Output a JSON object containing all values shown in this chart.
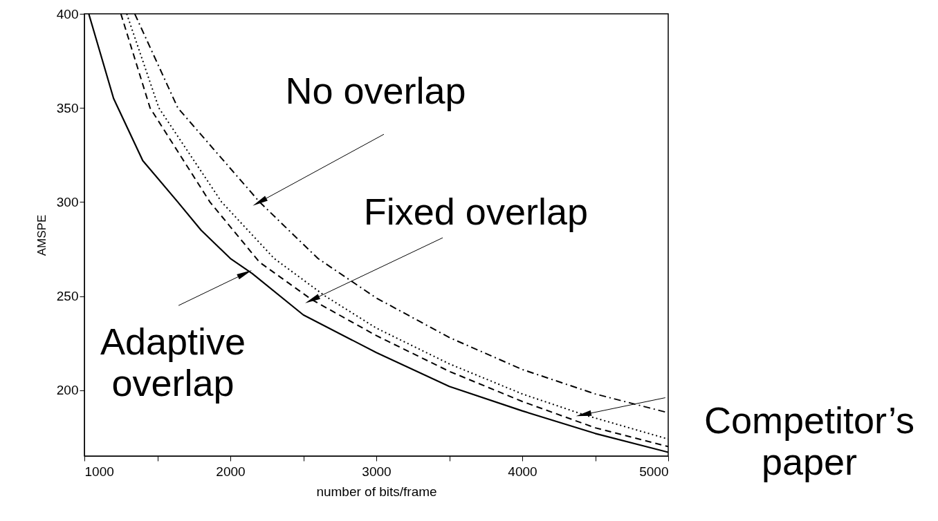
{
  "chart_data": {
    "type": "line",
    "xlabel": "number of bits/frame",
    "ylabel": "AMSPE",
    "xlim": [
      1000,
      5000
    ],
    "ylim": [
      165,
      400
    ],
    "xticks": [
      1000,
      {
        "value": 1500,
        "label": null
      },
      2000,
      {
        "value": 2500,
        "label": null
      },
      3000,
      {
        "value": 3500,
        "label": null
      },
      4000,
      {
        "value": 4500,
        "label": null
      },
      5000
    ],
    "yticks": [
      200,
      250,
      300,
      350,
      400
    ],
    "grid": false,
    "marker": "none",
    "series": [
      {
        "color": "#000000",
        "line_style": "solid",
        "x": [
          1030,
          1200,
          1400,
          1640,
          1800,
          2000,
          2150,
          2500,
          3000,
          3500,
          4000,
          4500,
          5000
        ],
        "values": [
          400,
          355,
          322,
          300,
          285,
          270,
          262,
          240,
          220,
          202,
          189,
          177,
          167
        ]
      },
      {
        "color": "#000000",
        "line_style": "dashed",
        "x": [
          1250,
          1450,
          1860,
          2200,
          2560,
          3000,
          3500,
          4000,
          4500,
          5000
        ],
        "values": [
          400,
          350,
          300,
          268,
          248,
          229,
          210,
          194,
          180,
          170
        ]
      },
      {
        "color": "#000000",
        "line_style": "dotted",
        "x": [
          1290,
          1510,
          1940,
          2300,
          2650,
          3000,
          3500,
          4000,
          4420,
          5000
        ],
        "values": [
          400,
          350,
          300,
          270,
          250,
          233,
          214,
          198,
          187,
          174
        ]
      },
      {
        "color": "#000000",
        "line_style": "dashdot",
        "x": [
          1345,
          1640,
          2200,
          2600,
          3000,
          3500,
          4000,
          4500,
          5000
        ],
        "values": [
          400,
          350,
          300,
          270,
          249,
          228,
          211,
          198,
          188
        ]
      }
    ],
    "annotations": [
      {
        "text": "No overlap",
        "x": 2200,
        "y": 300
      },
      {
        "text": "Fixed overlap",
        "x": 2560,
        "y": 248
      },
      {
        "text": "Adaptive\noverlap",
        "x": 2100,
        "y": 262
      },
      {
        "text": "Competitor’s\npaper",
        "x": 4420,
        "y": 187
      }
    ]
  }
}
